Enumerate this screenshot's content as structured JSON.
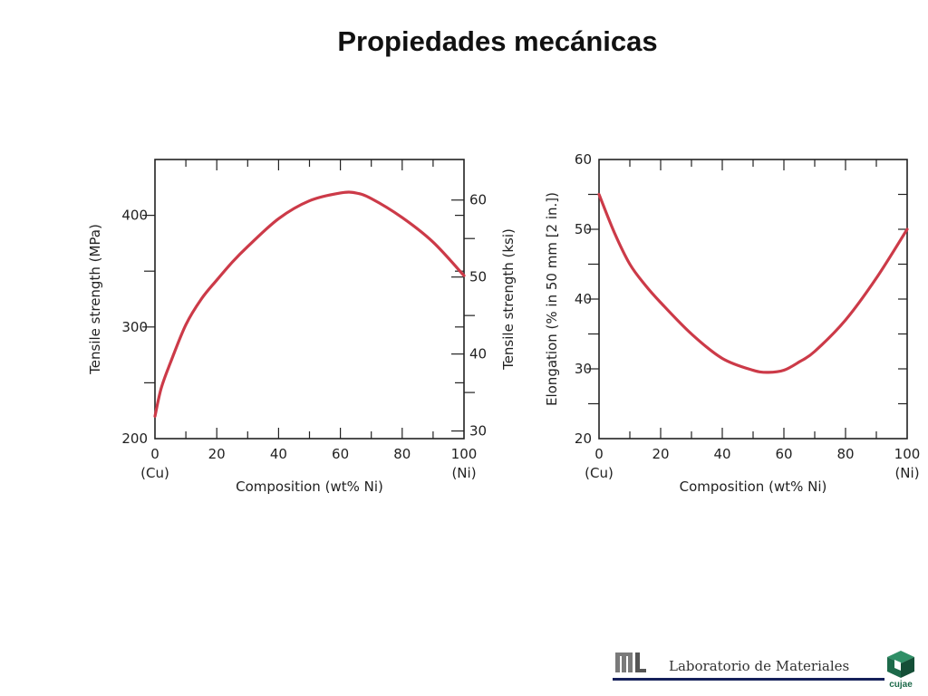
{
  "slide": {
    "title": "Propiedades mecánicas"
  },
  "footer": {
    "lab_name": "Laboratorio de Materiales",
    "logo_letters": "ML",
    "university": "cujae"
  },
  "colors": {
    "curve": "#cc3a48",
    "axis": "#222222",
    "footer_rule": "#15205a",
    "cujae_green": "#1d6a4a"
  },
  "chart_data": [
    {
      "type": "line",
      "title": "",
      "xlabel": "Composition (wt% Ni)",
      "xlim": [
        0,
        100
      ],
      "xticks": [
        0,
        20,
        40,
        60,
        80,
        100
      ],
      "xtick_labels": [
        "0",
        "20",
        "40",
        "60",
        "80",
        "100"
      ],
      "x_end_labels": {
        "left": "(Cu)",
        "right": "(Ni)"
      },
      "ylabel": "Tensile strength (MPa)",
      "ylim": [
        200,
        450
      ],
      "yticks": [
        200,
        300,
        400
      ],
      "ytick_labels": [
        "200",
        "300",
        "400"
      ],
      "ylabel_right": "Tensile strength (ksi)",
      "yticks_right": [
        30,
        40,
        50,
        60
      ],
      "ytick_labels_right": [
        "30",
        "40",
        "50",
        "60"
      ],
      "grid": false,
      "series": [
        {
          "x": [
            0,
            2,
            5,
            10,
            15,
            20,
            25,
            30,
            40,
            50,
            60,
            65,
            70,
            80,
            90,
            100
          ],
          "y": [
            220,
            245,
            268,
            302,
            325,
            342,
            358,
            372,
            397,
            413,
            420,
            420,
            415,
            398,
            376,
            346
          ]
        }
      ]
    },
    {
      "type": "line",
      "title": "",
      "xlabel": "Composition (wt% Ni)",
      "xlim": [
        0,
        100
      ],
      "xticks": [
        0,
        20,
        40,
        60,
        80,
        100
      ],
      "xtick_labels": [
        "0",
        "20",
        "40",
        "60",
        "80",
        "100"
      ],
      "x_end_labels": {
        "left": "(Cu)",
        "right": "(Ni)"
      },
      "ylabel": "Elongation (% in 50 mm [2 in.])",
      "ylim": [
        20,
        60
      ],
      "yticks": [
        20,
        30,
        40,
        50,
        60
      ],
      "ytick_labels": [
        "20",
        "30",
        "40",
        "50",
        "60"
      ],
      "grid": false,
      "series": [
        {
          "x": [
            0,
            5,
            10,
            15,
            20,
            30,
            40,
            50,
            55,
            60,
            65,
            70,
            80,
            90,
            100
          ],
          "y": [
            55,
            49.5,
            45,
            42,
            39.5,
            35,
            31.5,
            29.8,
            29.5,
            29.8,
            31,
            32.5,
            37,
            43,
            50
          ]
        }
      ]
    }
  ]
}
